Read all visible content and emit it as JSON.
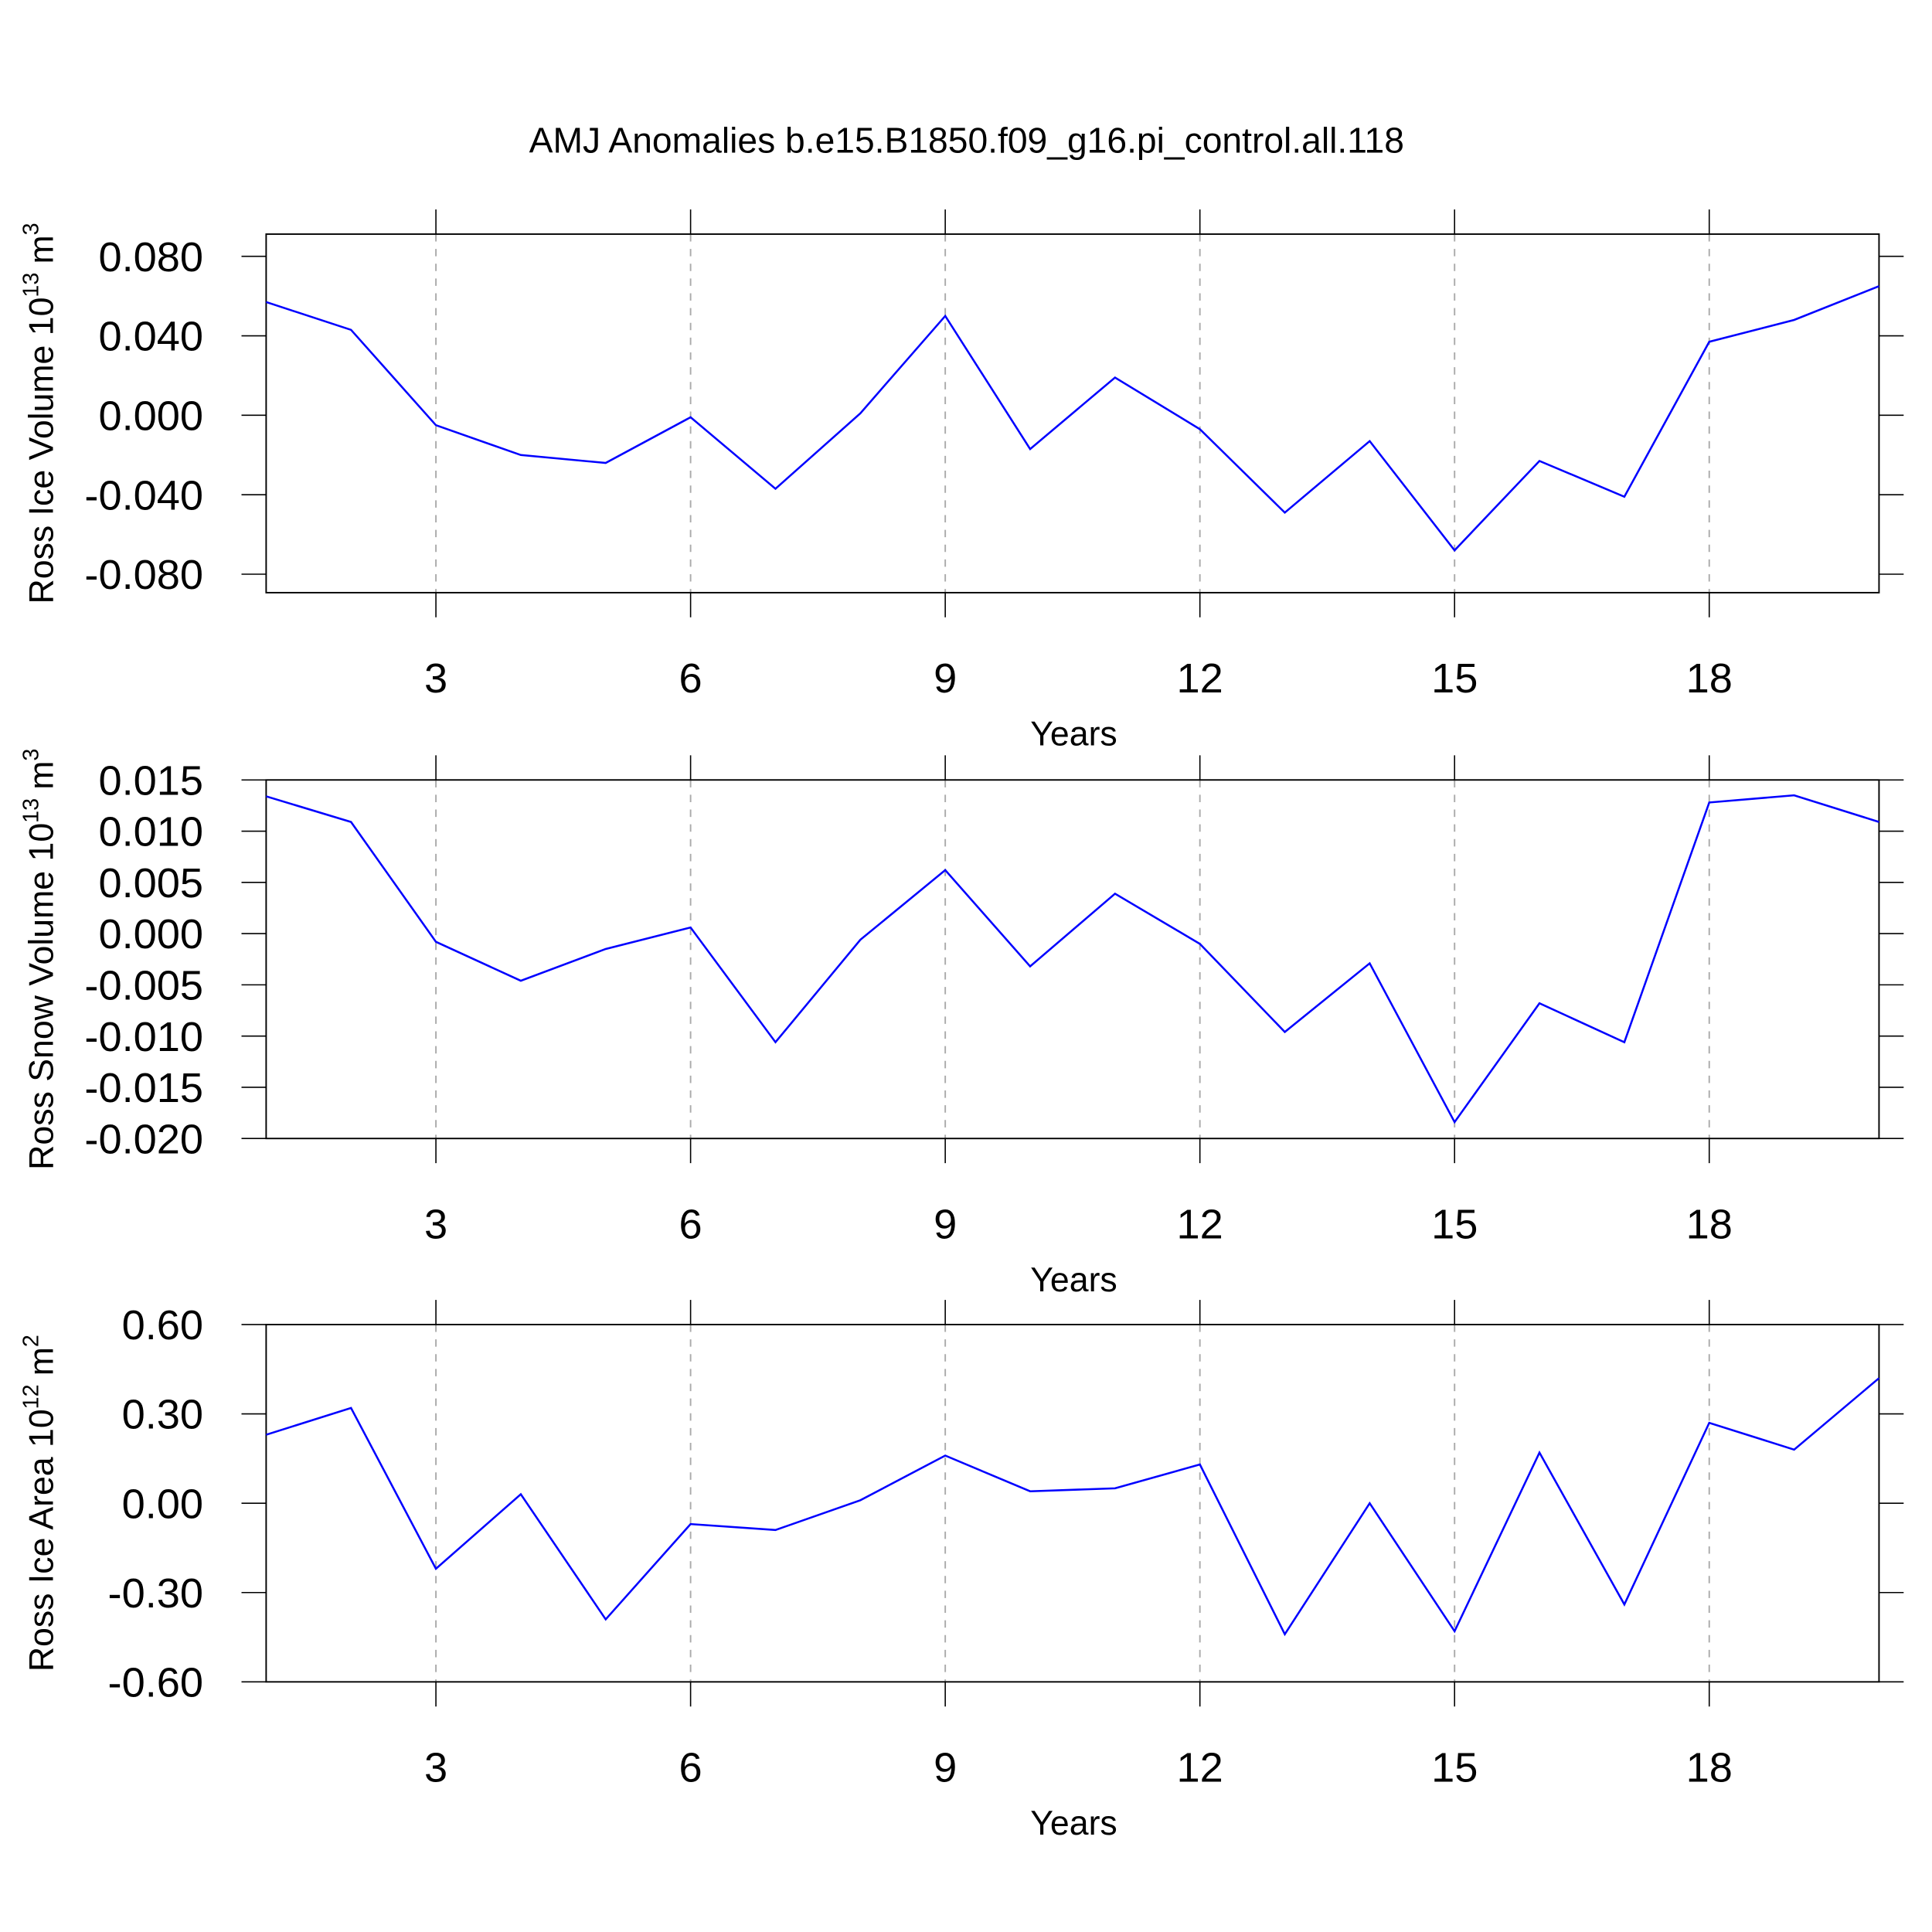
{
  "chart_data": [
    {
      "type": "line",
      "title": "AMJ Anomalies b.e15.B1850.f09_g16.pi_control.all.118",
      "ylabel": [
        "Ross Ice Volume 10",
        "13",
        "m",
        "3"
      ],
      "xlabel": "Years",
      "x": [
        1,
        2,
        3,
        4,
        5,
        6,
        7,
        8,
        9,
        10,
        11,
        12,
        13,
        14,
        15,
        16,
        17,
        18,
        19,
        20
      ],
      "values": [
        0.057,
        0.043,
        -0.005,
        -0.02,
        -0.024,
        -0.001,
        -0.037,
        0.001,
        0.05,
        -0.017,
        0.019,
        -0.007,
        -0.049,
        -0.013,
        -0.068,
        -0.023,
        -0.041,
        0.037,
        0.048,
        0.065
      ],
      "color": "#0000ff",
      "xlim": [
        1,
        20
      ],
      "ylim": [
        -0.0893,
        0.0912
      ],
      "xticks": [
        3,
        6,
        9,
        12,
        15,
        18
      ],
      "yticks": [
        {
          "value": -0.08,
          "label": "-0.080"
        },
        {
          "value": -0.04,
          "label": "-0.040"
        },
        {
          "value": 0,
          "label": "0.000"
        },
        {
          "value": 0.04,
          "label": "0.040"
        },
        {
          "value": 0.08,
          "label": "0.080"
        }
      ],
      "grid": "x"
    },
    {
      "type": "line",
      "ylabel": [
        "Ross Snow Volume 10",
        "13",
        "m",
        "3"
      ],
      "xlabel": "Years",
      "x": [
        1,
        2,
        3,
        4,
        5,
        6,
        7,
        8,
        9,
        10,
        11,
        12,
        13,
        14,
        15,
        16,
        17,
        18,
        19,
        20
      ],
      "values": [
        0.0134,
        0.0109,
        -0.0008,
        -0.0046,
        -0.0015,
        0.0006,
        -0.0106,
        -0.0006,
        0.0062,
        -0.0032,
        0.0039,
        -0.001,
        -0.0096,
        -0.0029,
        -0.0184,
        -0.0068,
        -0.0106,
        0.0128,
        0.0135,
        0.0109
      ],
      "color": "#0000ff",
      "xlim": [
        1,
        20
      ],
      "ylim": [
        -0.02,
        0.015
      ],
      "xticks": [
        3,
        6,
        9,
        12,
        15,
        18
      ],
      "yticks": [
        {
          "value": -0.02,
          "label": "-0.020"
        },
        {
          "value": -0.015,
          "label": "-0.015"
        },
        {
          "value": -0.01,
          "label": "-0.010"
        },
        {
          "value": -0.005,
          "label": "-0.005"
        },
        {
          "value": 0,
          "label": "0.000"
        },
        {
          "value": 0.005,
          "label": "0.005"
        },
        {
          "value": 0.01,
          "label": "0.010"
        },
        {
          "value": 0.015,
          "label": "0.015"
        }
      ],
      "grid": "x"
    },
    {
      "type": "line",
      "ylabel": [
        "Ross Ice Area 10",
        "12",
        "m",
        "2"
      ],
      "xlabel": "Years",
      "x": [
        1,
        2,
        3,
        4,
        5,
        6,
        7,
        8,
        9,
        10,
        11,
        12,
        13,
        14,
        15,
        16,
        17,
        18,
        19,
        20
      ],
      "values": [
        0.23,
        0.32,
        -0.22,
        0.03,
        -0.39,
        -0.07,
        -0.09,
        0.01,
        0.16,
        0.04,
        0.05,
        0.13,
        -0.44,
        0.0,
        -0.43,
        0.17,
        -0.34,
        0.27,
        0.18,
        0.42
      ],
      "color": "#0000ff",
      "xlim": [
        1,
        20
      ],
      "ylim": [
        -0.6,
        0.6
      ],
      "xticks": [
        3,
        6,
        9,
        12,
        15,
        18
      ],
      "yticks": [
        {
          "value": -0.6,
          "label": "-0.60"
        },
        {
          "value": -0.3,
          "label": "-0.30"
        },
        {
          "value": 0,
          "label": "0.00"
        },
        {
          "value": 0.3,
          "label": "0.30"
        },
        {
          "value": 0.6,
          "label": "0.60"
        }
      ],
      "grid": "x"
    }
  ]
}
